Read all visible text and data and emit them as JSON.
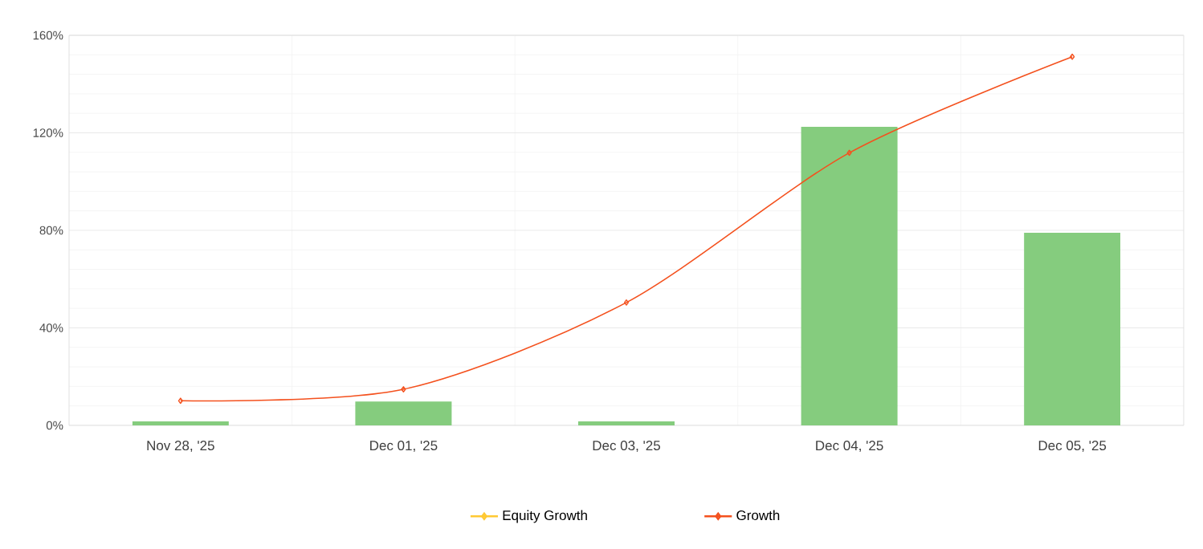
{
  "chart_data": {
    "type": "line",
    "categories": [
      "Nov 28, '25",
      "Dec 01, '25",
      "Dec 03, '25",
      "Dec 04, '25",
      "Dec 05, '25"
    ],
    "series": [
      {
        "type": "bar",
        "color": "#85cc7e",
        "values": [
          1.6,
          9.8,
          1.6,
          122.5,
          79
        ]
      },
      {
        "name": "Equity Growth",
        "color": "#ffc933",
        "values": [
          null,
          null,
          null,
          null,
          null
        ]
      },
      {
        "name": "Growth",
        "color": "#f4511e",
        "values": [
          10.1,
          14.8,
          50.4,
          111.8,
          151.2
        ]
      }
    ],
    "ylim": [
      0,
      160
    ],
    "yticks": [
      {
        "value": 0,
        "label": "0%"
      },
      {
        "value": 40,
        "label": "40%"
      },
      {
        "value": 80,
        "label": "80%"
      },
      {
        "value": 120,
        "label": "120%"
      },
      {
        "value": 160,
        "label": "160%"
      }
    ],
    "grid": true,
    "legend": "bottom",
    "marker": "diamond",
    "line_style": "solid"
  }
}
